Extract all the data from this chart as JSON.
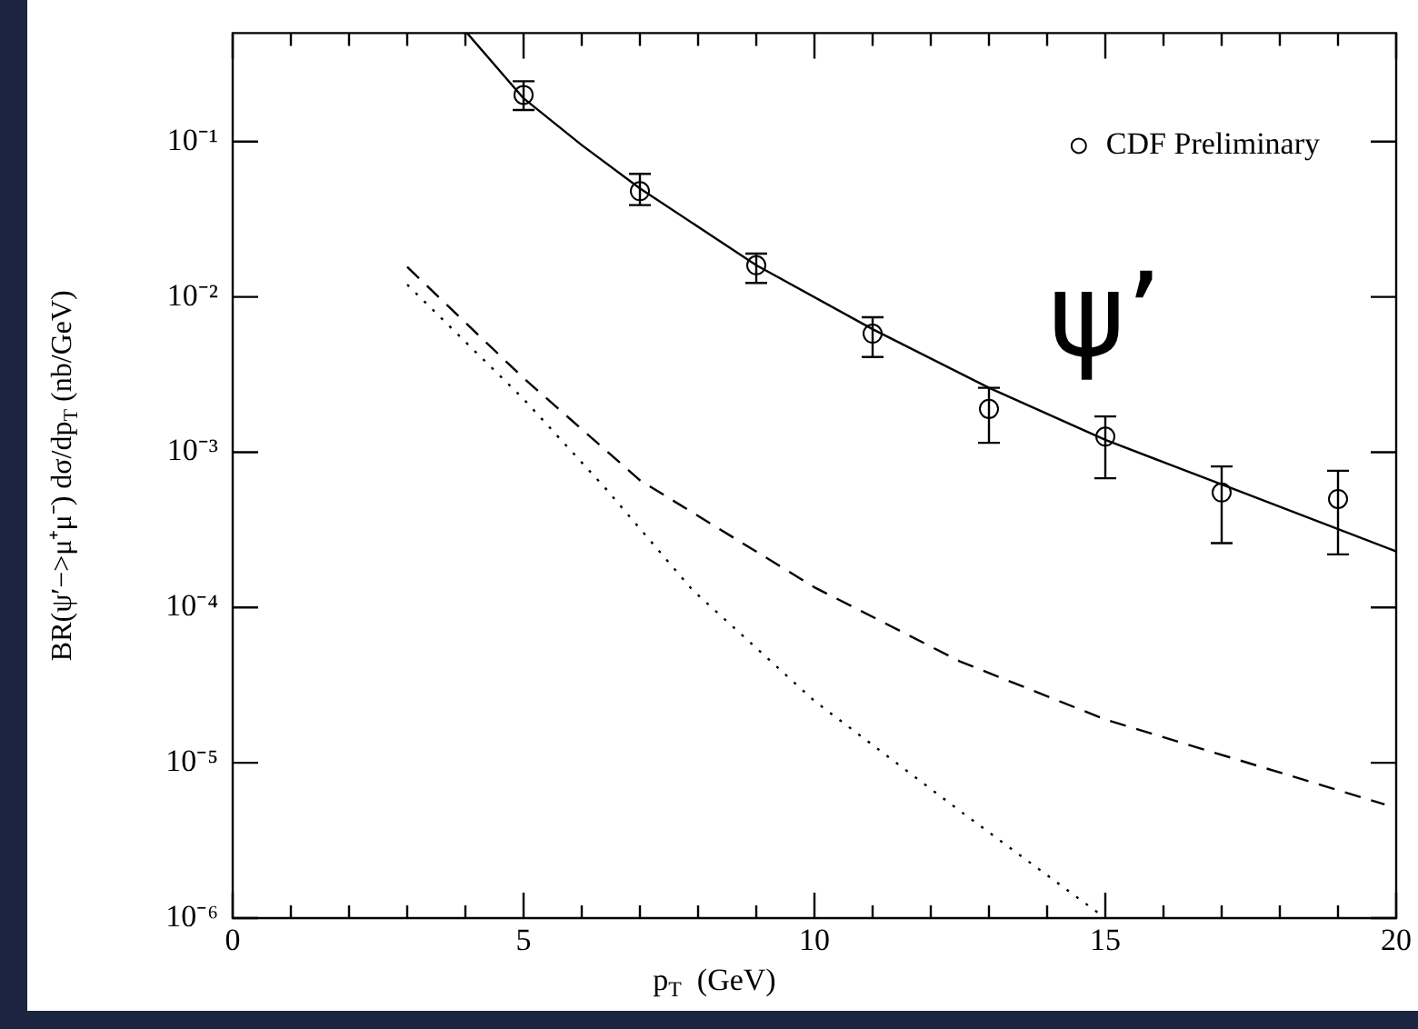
{
  "chart_data": {
    "type": "line",
    "xlabel": "p$_{T}$  (GeV)",
    "ylabel": "BR(ψ′−>μ⁺μ⁻) dσ/dp$_{T}$ (nb/GeV)",
    "log": "y",
    "grid": false,
    "legend": "top right",
    "xlim": [
      0,
      20
    ],
    "xticks": [
      0,
      {
        "value": 1,
        "label": null
      },
      {
        "value": 2,
        "label": null
      },
      {
        "value": 3,
        "label": null
      },
      {
        "value": 4,
        "label": null
      },
      5,
      {
        "value": 6,
        "label": null
      },
      {
        "value": 7,
        "label": null
      },
      {
        "value": 8,
        "label": null
      },
      {
        "value": 9,
        "label": null
      },
      10,
      {
        "value": 11,
        "label": null
      },
      {
        "value": 12,
        "label": null
      },
      {
        "value": 13,
        "label": null
      },
      {
        "value": 14,
        "label": null
      },
      15,
      {
        "value": 16,
        "label": null
      },
      {
        "value": 17,
        "label": null
      },
      {
        "value": 18,
        "label": null
      },
      {
        "value": 19,
        "label": null
      },
      20
    ],
    "ylim": [
      1e-06,
      0.5
    ],
    "yticks": [
      {
        "value": 1e-06,
        "label": "10⁻⁶"
      },
      {
        "value": 1e-05,
        "label": "10⁻⁵"
      },
      {
        "value": 0.0001,
        "label": "10⁻⁴"
      },
      {
        "value": 0.001,
        "label": "10⁻³"
      },
      {
        "value": 0.01,
        "label": "10⁻²"
      },
      {
        "value": 0.1,
        "label": "10⁻¹"
      }
    ],
    "annotations": [
      "ψ’"
    ],
    "series": [
      {
        "name": "CDF Preliminary",
        "type": "scatter",
        "marker": "circle",
        "color": "#000000",
        "x": [
          5,
          7,
          9,
          11,
          13,
          15,
          17,
          19
        ],
        "values": [
          0.2,
          0.048,
          0.016,
          0.0058,
          0.0019,
          0.00126,
          0.00055,
          0.0005
        ],
        "errors": [
          [
            0.16,
            0.245
          ],
          [
            0.039,
            0.062
          ],
          [
            0.0123,
            0.019
          ],
          [
            0.0041,
            0.0074
          ],
          [
            0.00115,
            0.0026
          ],
          [
            0.00068,
            0.0017
          ],
          [
            0.00026,
            0.00081
          ],
          [
            0.00022,
            0.00076
          ]
        ]
      },
      {
        "line_style": "solid",
        "color": "#000000",
        "x": [
          4.03,
          5,
          6,
          7,
          9,
          11,
          13,
          15,
          17,
          20
        ],
        "values": [
          0.5,
          0.19,
          0.095,
          0.05,
          0.016,
          0.0062,
          0.0026,
          0.0012,
          0.00062,
          0.00023
        ]
      },
      {
        "line_style": "dashed",
        "color": "#000000",
        "x": [
          3,
          5,
          7,
          10,
          12.5,
          15,
          19.8
        ],
        "values": [
          0.0156,
          0.003,
          0.00066,
          0.000135,
          4.5e-05,
          1.9e-05,
          5.4e-06
        ]
      },
      {
        "line_style": "dotted",
        "color": "#000000",
        "x": [
          3,
          5,
          6.4,
          7.9,
          10,
          12.5,
          15
        ],
        "values": [
          0.012,
          0.0022,
          0.00059,
          0.00013,
          2.5e-05,
          4.9e-06,
          1e-06
        ]
      }
    ]
  }
}
